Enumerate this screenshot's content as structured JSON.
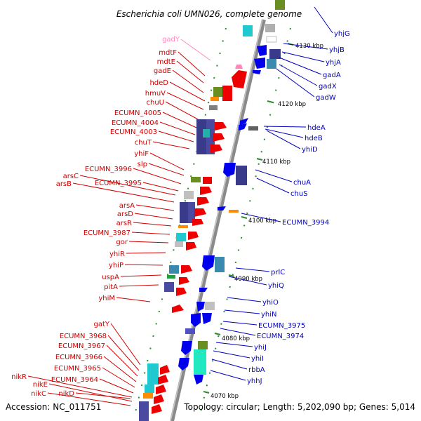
{
  "title": "Escherichia coli UMN026, complete genome",
  "footer": {
    "accession": "Accession: NC_011751",
    "topology": "Topology: circular; Length: 5,202,090 bp; Genes: 5,014"
  },
  "kbp_ticks": [
    "4130 kbp",
    "4120 kbp",
    "4110 kbp",
    "4100 kbp",
    "4090 kbp",
    "4080 kbp",
    "4070 kbp"
  ],
  "left_labels": [
    "gadY",
    "mdtF",
    "mdtE",
    "gadE",
    "hdeD",
    "hmuV",
    "chuU",
    "ECUMN_4005",
    "ECUMN_4004",
    "ECUMN_4003",
    "chuT",
    "yhiF",
    "slp",
    "ECUMN_3996",
    "arsC",
    "arsB",
    "ECUMN_3995",
    "arsA",
    "arsD",
    "arsR",
    "ECUMN_3987",
    "gor",
    "yhiR",
    "yhiP",
    "uspA",
    "pitA",
    "yhiM",
    "gatY",
    "ECUMN_3968",
    "ECUMN_3967",
    "ECUMN_3966",
    "ECUMN_3965",
    "ECUMN_3964",
    "nikR",
    "nikE",
    "nikC",
    "nikD"
  ],
  "right_labels": [
    "yhjG",
    "yhjB",
    "yhjA",
    "gadA",
    "gadX",
    "gadW",
    "hdeA",
    "hdeB",
    "yhiD",
    "chuA",
    "chuS",
    "ECUMN_3994",
    "prlC",
    "yhiQ",
    "yhiO",
    "yhiN",
    "ECUMN_3975",
    "ECUMN_3974",
    "yhiJ",
    "yhiI",
    "rbbA",
    "yhhJ"
  ],
  "colors": {
    "forward_gene": "#ee0000",
    "reverse_gene": "#0000ee",
    "left_label": "#d00000",
    "right_label": "#0000c0",
    "rna_label": "#ff88bb",
    "backbone": "#8a8a8a",
    "tick_mark": "#2e8b2e"
  }
}
